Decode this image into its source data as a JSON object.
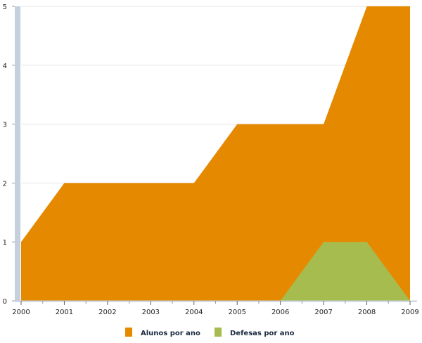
{
  "chart_data": {
    "type": "area",
    "x": [
      "2000",
      "2001",
      "2002",
      "2003",
      "2004",
      "2005",
      "2006",
      "2007",
      "2008",
      "2009"
    ],
    "ylim": [
      0,
      5
    ],
    "yticks": [
      "0",
      "1",
      "2",
      "3",
      "4",
      "5"
    ],
    "grid": true,
    "legend_position": "bottom",
    "series": [
      {
        "name": "Alunos por ano",
        "values": [
          1,
          2,
          2,
          2,
          2,
          3,
          3,
          3,
          5,
          5
        ],
        "color": "#e58a00"
      },
      {
        "name": "Defesas por ano",
        "values": [
          0,
          0,
          0,
          0,
          0,
          0,
          0,
          1,
          1,
          0
        ],
        "color": "#a6bc4e"
      }
    ],
    "axis_color": "#c4d0de"
  }
}
